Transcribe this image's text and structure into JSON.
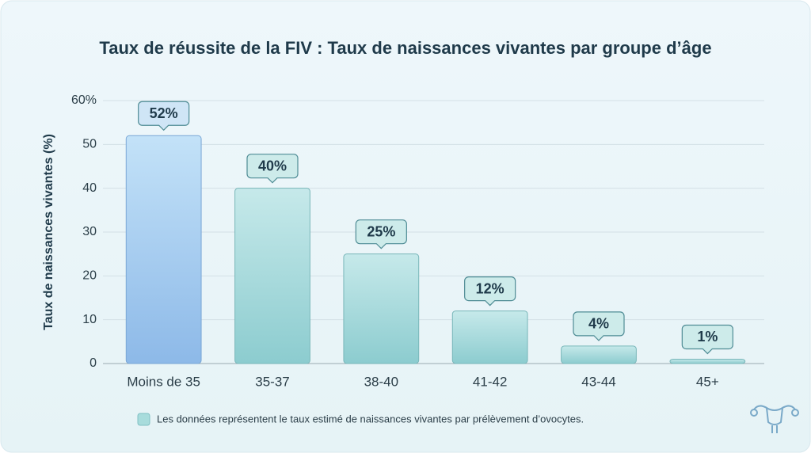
{
  "chart_data": {
    "type": "bar",
    "title": "Taux de réussite de la FIV : Taux de naissances vivantes par groupe d’âge",
    "y_label": "Taux de naissances vivantes (%)",
    "categories": [
      "Moins de 35",
      "35-37",
      "38-40",
      "41-42",
      "43-44",
      "45+"
    ],
    "values": [
      52,
      40,
      25,
      12,
      4,
      1
    ],
    "value_labels": [
      "52%",
      "40%",
      "25%",
      "12%",
      "4%",
      "1%"
    ],
    "colors": [
      "#9cc8ef",
      "#a8dcdc",
      "#a8dcdc",
      "#a8dcdc",
      "#a8dcdc",
      "#a8dcdc"
    ],
    "ylim": [
      0,
      60
    ],
    "yticks": [
      0,
      10,
      20,
      30,
      40,
      50,
      {
        "value": 60,
        "label": "60%"
      }
    ],
    "grid": true,
    "note": "Les données représentent le taux estimé de naissances vivantes par prélèvement d’ovocytes."
  }
}
